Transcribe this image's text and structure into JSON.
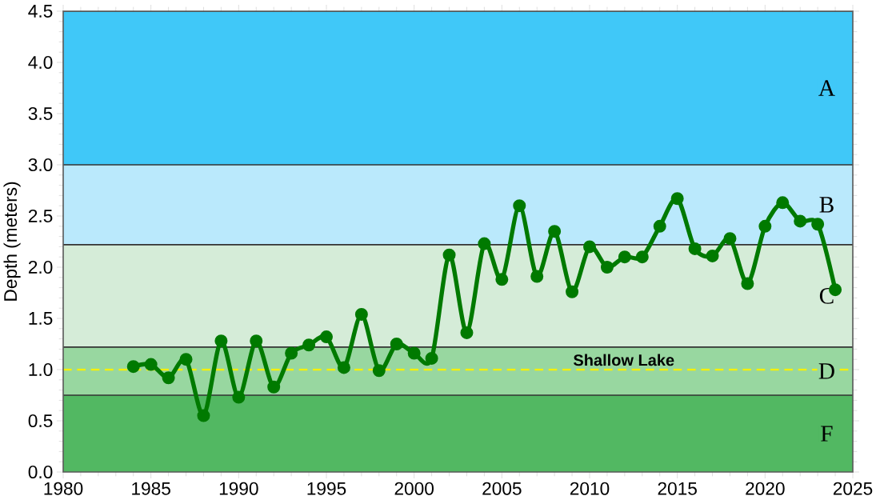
{
  "chart_data": {
    "type": "line",
    "ylabel": "Depth (meters)",
    "x": [
      1984,
      1985,
      1986,
      1987,
      1988,
      1989,
      1990,
      1991,
      1992,
      1993,
      1994,
      1995,
      1996,
      1997,
      1998,
      1999,
      2000,
      2001,
      2002,
      2003,
      2004,
      2005,
      2006,
      2007,
      2008,
      2009,
      2010,
      2011,
      2012,
      2013,
      2014,
      2015,
      2016,
      2017,
      2018,
      2019,
      2020,
      2021,
      2022,
      2023,
      2024
    ],
    "series": [
      {
        "color": "#007a00",
        "values": [
          1.03,
          1.05,
          0.92,
          1.1,
          0.55,
          1.28,
          0.73,
          1.28,
          0.83,
          1.16,
          1.24,
          1.32,
          1.02,
          1.54,
          0.99,
          1.25,
          1.16,
          1.11,
          2.12,
          1.36,
          2.23,
          1.88,
          2.6,
          1.91,
          2.35,
          1.76,
          2.2,
          2.0,
          2.1,
          2.1,
          2.4,
          2.67,
          2.18,
          2.11,
          2.28,
          1.84,
          2.4,
          2.63,
          2.45,
          2.42,
          1.78
        ]
      }
    ],
    "xlim": [
      1980,
      2025
    ],
    "xticks": [
      1980,
      1985,
      1990,
      1995,
      2000,
      2005,
      2010,
      2015,
      2020,
      2025
    ],
    "ylim": [
      0,
      4.5
    ],
    "yticks": [
      {
        "value": 0,
        "label": "0.0"
      },
      {
        "value": 0.5,
        "label": "0.5"
      },
      {
        "value": 1,
        "label": "1.0"
      },
      {
        "value": 1.5,
        "label": "1.5"
      },
      {
        "value": 2,
        "label": "2.0"
      },
      {
        "value": 2.5,
        "label": "2.5"
      },
      {
        "value": 3,
        "label": "3.0"
      },
      {
        "value": 3.5,
        "label": "3.5"
      },
      {
        "value": 4,
        "label": "4.0"
      },
      {
        "value": 4.5,
        "label": "4.5"
      }
    ],
    "bands": [
      {
        "axis": "y",
        "from": 3.0,
        "to": 4.5,
        "label": "A",
        "color": "#40c8f8"
      },
      {
        "axis": "y",
        "from": 2.22,
        "to": 3.0,
        "label": "B",
        "color": "#bae9fc"
      },
      {
        "axis": "y",
        "from": 1.22,
        "to": 2.22,
        "label": "C",
        "color": "#d5ecd8"
      },
      {
        "axis": "y",
        "from": 0.75,
        "to": 1.22,
        "label": "D",
        "color": "#98d7a0"
      },
      {
        "axis": "y",
        "from": 0,
        "to": 0.75,
        "label": "F",
        "color": "#52b862"
      }
    ],
    "ref_lines": [
      {
        "axis": "y",
        "value": 1.0,
        "label": "Shallow Lake",
        "color": "#f5f000",
        "line_style": "dashed"
      }
    ],
    "marker": "circle",
    "line_style": "solid",
    "grid": false
  }
}
